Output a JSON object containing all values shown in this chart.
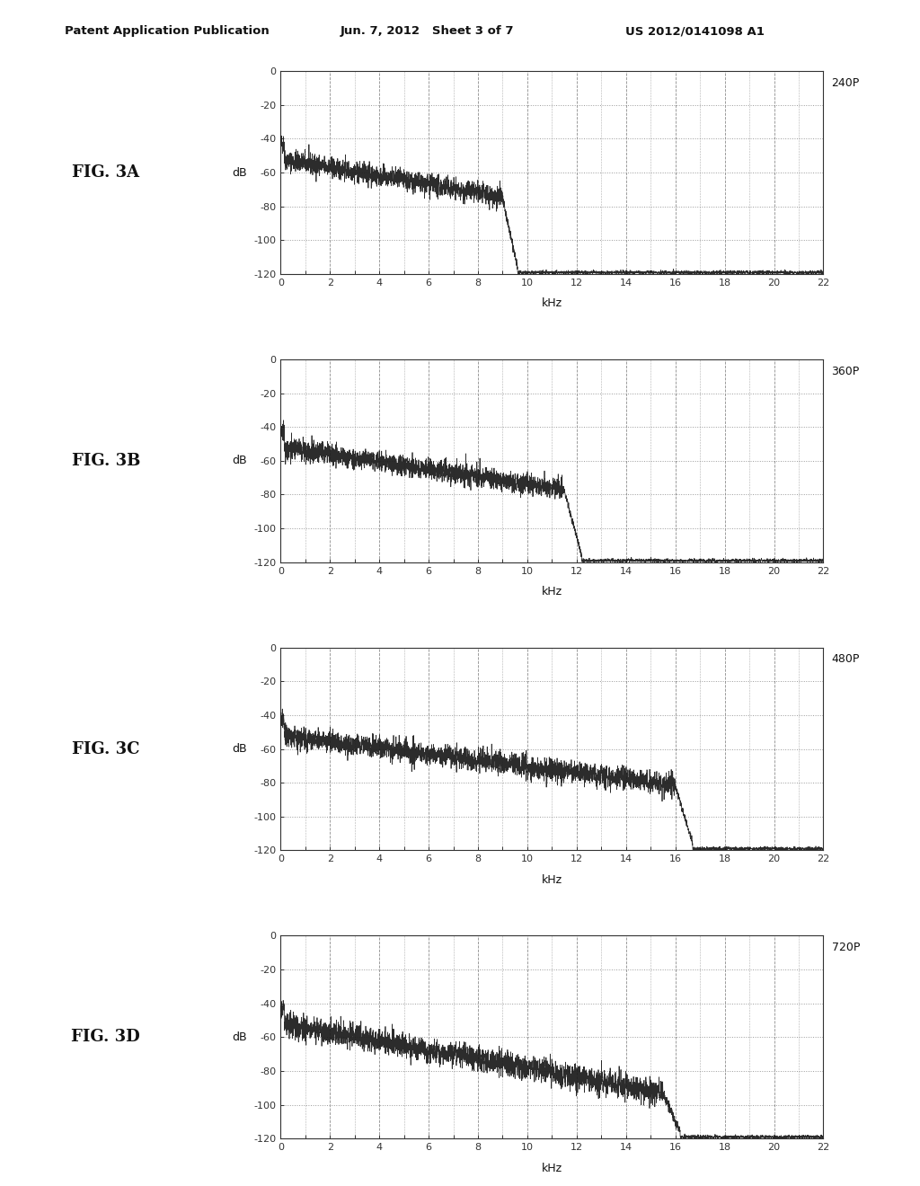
{
  "header_left": "Patent Application Publication",
  "header_mid": "Jun. 7, 2012   Sheet 3 of 7",
  "header_right": "US 2012/0141098 A1",
  "figures": [
    {
      "label": "FIG. 3A",
      "tag": "240P",
      "cutoff_khz": 9.5
    },
    {
      "label": "FIG. 3B",
      "tag": "360P",
      "cutoff_khz": 12.0
    },
    {
      "label": "FIG. 3C",
      "tag": "480P",
      "cutoff_khz": 16.5
    },
    {
      "label": "FIG. 3D",
      "tag": "720P",
      "cutoff_khz": 16.0
    }
  ],
  "xlim": [
    0,
    22
  ],
  "ylim": [
    -120,
    0
  ],
  "yticks": [
    0,
    -20,
    -40,
    -60,
    -80,
    -100,
    -120
  ],
  "xticks": [
    0,
    2,
    4,
    6,
    8,
    10,
    12,
    14,
    16,
    18,
    20,
    22
  ],
  "xlabel": "kHz",
  "ylabel": "dB",
  "bg_color": "#ffffff",
  "line_color": "#1a1a1a",
  "grid_dash_color": "#666666",
  "grid_dot_color": "#888888"
}
